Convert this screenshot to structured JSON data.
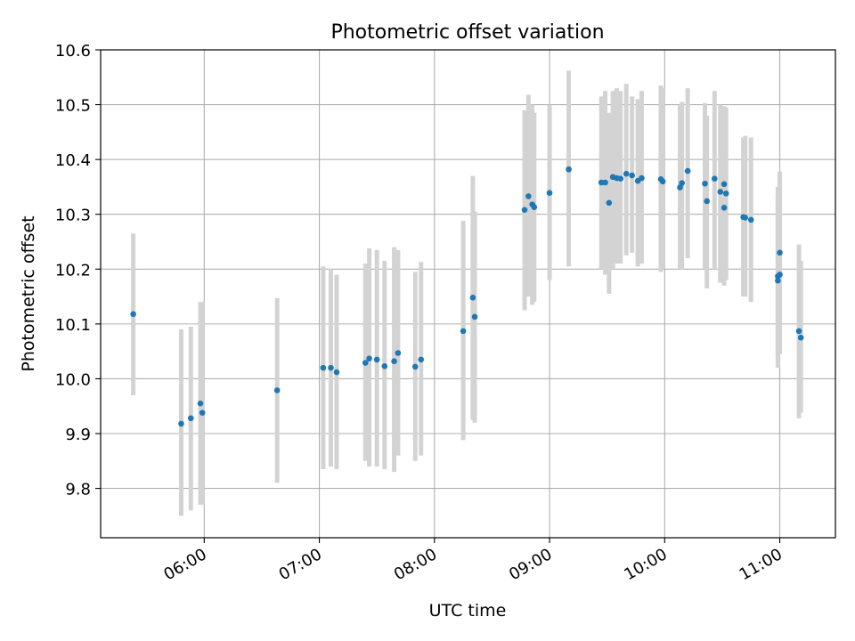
{
  "chart_data": {
    "type": "scatter",
    "title": "Photometric offset variation",
    "xlabel": "UTC time",
    "ylabel": "Photometric offset",
    "grid": true,
    "xlim": [
      "05:06",
      "11:29"
    ],
    "ylim": [
      9.71,
      10.6
    ],
    "xticks": [
      "06:00",
      "07:00",
      "08:00",
      "09:00",
      "10:00",
      "11:00"
    ],
    "yticks": [
      "9.8",
      "9.9",
      "10.0",
      "10.1",
      "10.2",
      "10.3",
      "10.4",
      "10.5",
      "10.6"
    ],
    "colors": {
      "points": "#1f77b4",
      "errorbars": "#d3d3d3",
      "grid": "#b0b0b0"
    },
    "series": [
      {
        "x": [
          "05:23",
          "05:48",
          "05:53",
          "05:58",
          "05:59",
          "06:38",
          "07:02",
          "07:06",
          "07:09",
          "07:24",
          "07:26",
          "07:30",
          "07:34",
          "07:39",
          "07:41",
          "07:50",
          "07:53",
          "08:15",
          "08:20",
          "08:21",
          "08:47",
          "08:49",
          "08:51",
          "08:52",
          "09:00",
          "09:10",
          "09:27",
          "09:29",
          "09:31",
          "09:33",
          "09:35",
          "09:37",
          "09:40",
          "09:43",
          "09:46",
          "09:48",
          "09:58",
          "09:59",
          "10:08",
          "10:09",
          "10:12",
          "10:21",
          "10:22",
          "10:26",
          "10:29",
          "10:31",
          "10:31",
          "10:32",
          "10:41",
          "10:42",
          "10:45",
          "10:59",
          "10:59",
          "11:00",
          "11:00",
          "11:10",
          "11:11"
        ],
        "y": [
          10.118,
          9.918,
          9.928,
          9.955,
          9.938,
          9.979,
          10.02,
          10.02,
          10.012,
          10.029,
          10.037,
          10.035,
          10.023,
          10.032,
          10.047,
          10.022,
          10.035,
          10.087,
          10.148,
          10.113,
          10.308,
          10.333,
          10.318,
          10.313,
          10.339,
          10.382,
          10.358,
          10.358,
          10.321,
          10.368,
          10.366,
          10.365,
          10.374,
          10.371,
          10.361,
          10.366,
          10.364,
          10.36,
          10.349,
          10.357,
          10.379,
          10.356,
          10.324,
          10.365,
          10.341,
          10.355,
          10.312,
          10.338,
          10.295,
          10.294,
          10.29,
          10.179,
          10.187,
          10.19,
          10.23,
          10.087,
          10.075
        ],
        "yerr_low": [
          9.97,
          9.75,
          9.76,
          9.77,
          9.77,
          9.81,
          9.835,
          9.84,
          9.835,
          9.85,
          9.84,
          9.84,
          9.835,
          9.83,
          9.86,
          9.85,
          9.86,
          9.888,
          9.925,
          9.92,
          10.125,
          10.15,
          10.135,
          10.14,
          10.18,
          10.205,
          10.2,
          10.19,
          10.155,
          10.2,
          10.21,
          10.21,
          10.225,
          10.23,
          10.205,
          10.21,
          10.195,
          10.2,
          10.2,
          10.2,
          10.22,
          10.2,
          10.165,
          10.2,
          10.175,
          10.19,
          10.17,
          10.18,
          10.15,
          10.15,
          10.14,
          10.02,
          10.04,
          10.045,
          10.08,
          9.928,
          9.938
        ],
        "yerr_high": [
          10.265,
          10.09,
          10.095,
          10.14,
          10.14,
          10.147,
          10.205,
          10.2,
          10.19,
          10.21,
          10.238,
          10.235,
          10.215,
          10.24,
          10.235,
          10.195,
          10.213,
          10.288,
          10.37,
          10.305,
          10.49,
          10.518,
          10.5,
          10.485,
          10.5,
          10.562,
          10.515,
          10.525,
          10.485,
          10.525,
          10.53,
          10.525,
          10.538,
          10.515,
          10.51,
          10.525,
          10.535,
          10.53,
          10.5,
          10.505,
          10.53,
          10.503,
          10.48,
          10.525,
          10.5,
          10.497,
          10.497,
          10.495,
          10.44,
          10.443,
          10.44,
          10.335,
          10.35,
          10.335,
          10.378,
          10.245,
          10.215
        ]
      }
    ]
  }
}
